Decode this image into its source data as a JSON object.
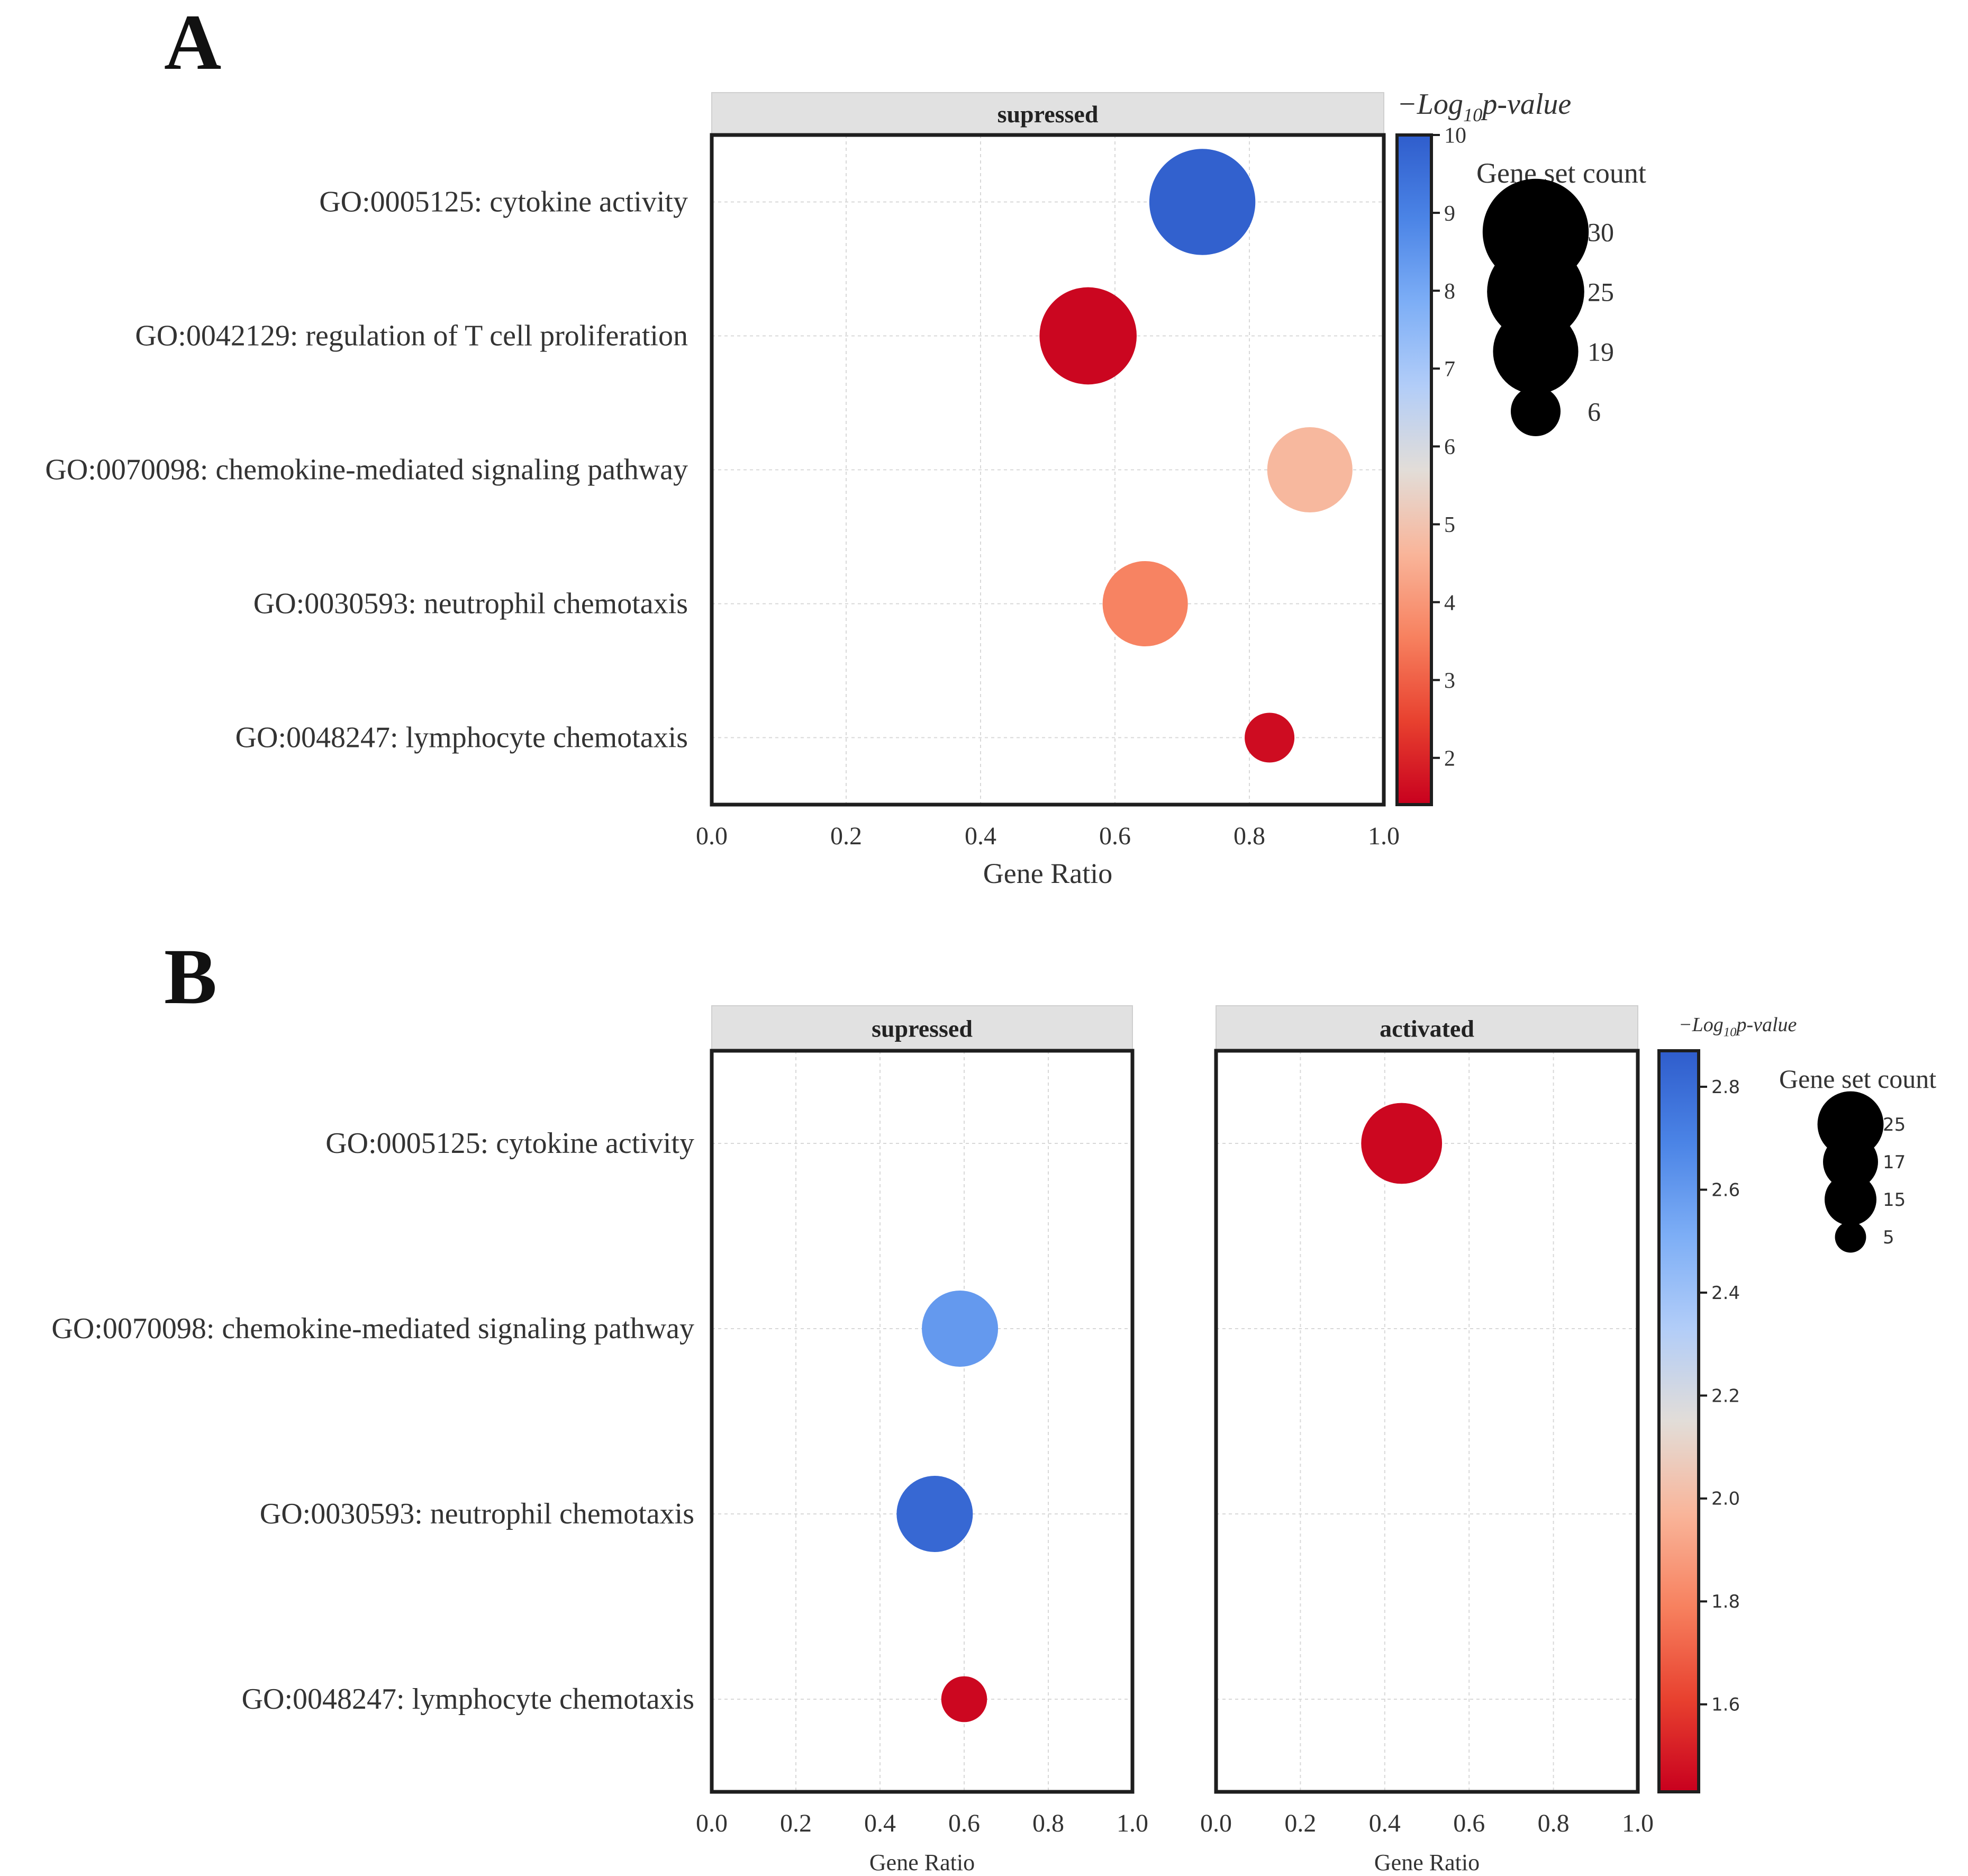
{
  "colors": {
    "cmap": [
      "#c8001e",
      "#e8412f",
      "#f7815f",
      "#f9b59a",
      "#e2ddd8",
      "#b2cdf8",
      "#7daef6",
      "#4b84e6",
      "#2f5dcc"
    ],
    "strip_bg": "#e1e1e1",
    "frame": "#1e1e1e",
    "grid": "#d8d8d8",
    "text": "#333333"
  },
  "chart_data": [
    {
      "panel_label": "A",
      "type": "scatter",
      "xlabel": "Gene Ratio",
      "xlim": [
        0,
        1
      ],
      "x_ticks": [
        "0.0",
        "0.2",
        "0.4",
        "0.6",
        "0.8",
        "1.0"
      ],
      "categories": [
        "GO:0005125: cytokine activity",
        "GO:0042129: regulation of T cell proliferation",
        "GO:0070098: chemokine-mediated signaling pathway",
        "GO:0030593: neutrophil chemotaxis",
        "GO:0048247: lymphocyte chemotaxis"
      ],
      "facets": [
        {
          "title": "supressed",
          "points": [
            {
              "term": 0,
              "gene_ratio": 0.73,
              "neg_log10_p": 9.9,
              "gene_set_count": 30
            },
            {
              "term": 1,
              "gene_ratio": 0.56,
              "neg_log10_p": 1.5,
              "gene_set_count": 25
            },
            {
              "term": 2,
              "gene_ratio": 0.89,
              "neg_log10_p": 4.7,
              "gene_set_count": 19
            },
            {
              "term": 3,
              "gene_ratio": 0.645,
              "neg_log10_p": 3.6,
              "gene_set_count": 19
            },
            {
              "term": 4,
              "gene_ratio": 0.83,
              "neg_log10_p": 1.6,
              "gene_set_count": 6
            }
          ]
        }
      ],
      "colorbar": {
        "title_main": "−Log",
        "title_sub": "10",
        "title_tail": "p-value",
        "range": [
          1.4,
          10.0
        ],
        "ticks": [
          "2",
          "3",
          "4",
          "5",
          "6",
          "7",
          "8",
          "9",
          "10"
        ]
      },
      "size_legend": {
        "title": "Gene set count",
        "items": [
          {
            "label": "30",
            "value": 30
          },
          {
            "label": "25",
            "value": 25
          },
          {
            "label": "19",
            "value": 19
          },
          {
            "label": "6",
            "value": 6
          }
        ]
      }
    },
    {
      "panel_label": "B",
      "type": "scatter",
      "xlabel": "Gene Ratio",
      "xlim": [
        0,
        1
      ],
      "x_ticks": [
        "0.0",
        "0.2",
        "0.4",
        "0.6",
        "0.8",
        "1.0"
      ],
      "categories": [
        "GO:0005125: cytokine activity",
        "GO:0070098: chemokine-mediated signaling pathway",
        "GO:0030593: neutrophil chemotaxis",
        "GO:0048247: lymphocyte chemotaxis"
      ],
      "facets": [
        {
          "title": "supressed",
          "points": [
            {
              "term": 1,
              "gene_ratio": 0.59,
              "neg_log10_p": 2.6,
              "gene_set_count": 15
            },
            {
              "term": 2,
              "gene_ratio": 0.53,
              "neg_log10_p": 2.82,
              "gene_set_count": 15
            },
            {
              "term": 3,
              "gene_ratio": 0.6,
              "neg_log10_p": 1.45,
              "gene_set_count": 5
            }
          ]
        },
        {
          "title": "activated",
          "points": [
            {
              "term": 0,
              "gene_ratio": 0.44,
              "neg_log10_p": 1.45,
              "gene_set_count": 17
            }
          ]
        }
      ],
      "colorbar": {
        "title_main": "−Log",
        "title_sub": "10",
        "title_tail": "p-value",
        "range": [
          1.43,
          2.87
        ],
        "ticks": [
          "1.6",
          "1.8",
          "2.0",
          "2.2",
          "2.4",
          "2.6",
          "2.8"
        ]
      },
      "size_legend": {
        "title": "Gene set count",
        "items": [
          {
            "label": "25",
            "value": 25
          },
          {
            "label": "17",
            "value": 17
          },
          {
            "label": "15",
            "value": 15
          },
          {
            "label": "5",
            "value": 5
          }
        ]
      }
    }
  ]
}
